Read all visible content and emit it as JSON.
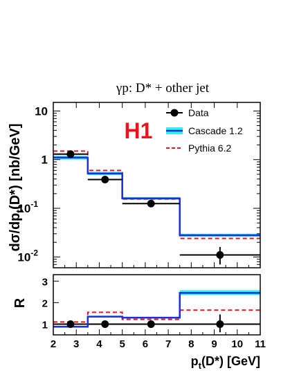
{
  "chart_data": [
    {
      "type": "line",
      "panel": "main",
      "title": "γp:  D* + other jet",
      "logo": "H1",
      "ylabel_parts": [
        "dσ/dp",
        "t",
        "(D*)  [nb/GeV]"
      ],
      "yscale": "log",
      "ylim": [
        0.006,
        15
      ],
      "xlim": [
        2,
        11
      ],
      "yticks": [
        {
          "v": 0.01,
          "base": "10",
          "exp": "-2"
        },
        {
          "v": 0.1,
          "base": "10",
          "exp": "-1"
        },
        {
          "v": 1,
          "base": "1",
          "exp": ""
        },
        {
          "v": 10,
          "base": "10",
          "exp": ""
        }
      ],
      "bin_edges": [
        2,
        3.5,
        5,
        7.5,
        11
      ],
      "legend_position": "top-right",
      "legend": [
        "Data",
        "Cascade 1.2",
        "Pythia 6.2"
      ],
      "data": {
        "name": "Data",
        "x": [
          2.75,
          4.25,
          6.25,
          9.25
        ],
        "y": [
          1.3,
          0.39,
          0.125,
          0.011
        ],
        "yerr_low": [
          0.15,
          0.05,
          0.018,
          0.004
        ],
        "yerr_high": [
          0.15,
          0.05,
          0.018,
          0.005
        ]
      },
      "series": [
        {
          "name": "Cascade 1.2",
          "values": [
            1.1,
            0.52,
            0.16,
            0.028
          ],
          "band_low": [
            1.0,
            0.48,
            0.15,
            0.026
          ],
          "band_high": [
            1.2,
            0.56,
            0.17,
            0.03
          ]
        },
        {
          "name": "Pythia 6.2",
          "values": [
            1.5,
            0.6,
            0.155,
            0.024
          ]
        }
      ]
    },
    {
      "type": "line",
      "panel": "ratio",
      "ylabel": "R",
      "xlabel_parts": [
        "p",
        "t",
        "(D*) [GeV]"
      ],
      "xlim": [
        2,
        11
      ],
      "ylim": [
        0.5,
        3.3
      ],
      "xticks": [
        "2",
        "3",
        "4",
        "5",
        "6",
        "7",
        "8",
        "9",
        "10",
        "11"
      ],
      "yticks": [
        "1",
        "2",
        "3"
      ],
      "bin_edges": [
        2,
        3.5,
        5,
        7.5,
        11
      ],
      "data": {
        "name": "Data",
        "x": [
          2.75,
          4.25,
          6.25,
          9.25
        ],
        "y": [
          1.0,
          1.0,
          1.0,
          1.0
        ],
        "yerr_low": [
          0.13,
          0.13,
          0.15,
          0.38
        ],
        "yerr_high": [
          0.13,
          0.13,
          0.15,
          0.45
        ]
      },
      "series": [
        {
          "name": "Cascade 1.2",
          "values": [
            0.88,
            1.35,
            1.3,
            2.45
          ],
          "band_low": [
            0.85,
            1.32,
            1.27,
            2.35
          ],
          "band_high": [
            0.92,
            1.38,
            1.33,
            2.58
          ]
        },
        {
          "name": "Pythia 6.2",
          "values": [
            1.1,
            1.55,
            1.22,
            1.65
          ]
        }
      ]
    }
  ],
  "colors": {
    "data": "#000000",
    "cascade_line": "#1a2fd8",
    "cascade_band": "#33f0f0",
    "pythia": "#e8141e",
    "logo": "#e8141e",
    "unity": "#000000"
  }
}
